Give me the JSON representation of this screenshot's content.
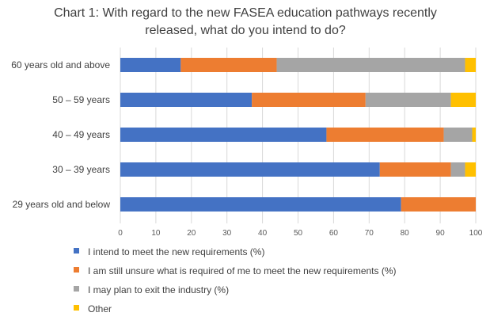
{
  "chart_data": {
    "type": "bar",
    "orientation": "horizontal",
    "stacked": true,
    "title": "Chart 1: With regard to the new FASEA education pathways recently released, what do you intend to do?",
    "title_lines": [
      "Chart 1: With regard to the new FASEA education pathways recently",
      "released, what do you intend to do?"
    ],
    "categories": [
      "60 years old and above",
      "50 – 59 years",
      "40 – 49 years",
      "30 – 39 years",
      "29 years old and below"
    ],
    "series": [
      {
        "name": "I intend to meet the new requirements (%)",
        "color": "#4472C4",
        "values": [
          17,
          37,
          58,
          73,
          79
        ]
      },
      {
        "name": "I am still unsure what is required of me to meet the new requirements (%)",
        "color": "#ED7D31",
        "values": [
          27,
          32,
          33,
          20,
          21
        ]
      },
      {
        "name": "I may plan to exit the industry (%)",
        "color": "#A5A5A5",
        "values": [
          53,
          24,
          8,
          4,
          0
        ]
      },
      {
        "name": "Other",
        "color": "#FFC000",
        "values": [
          3,
          7,
          1,
          3,
          0
        ]
      }
    ],
    "xlim": [
      0,
      100
    ],
    "xticks": [
      0,
      10,
      20,
      30,
      40,
      50,
      60,
      70,
      80,
      90,
      100
    ],
    "grid": true,
    "legend_position": "bottom"
  }
}
